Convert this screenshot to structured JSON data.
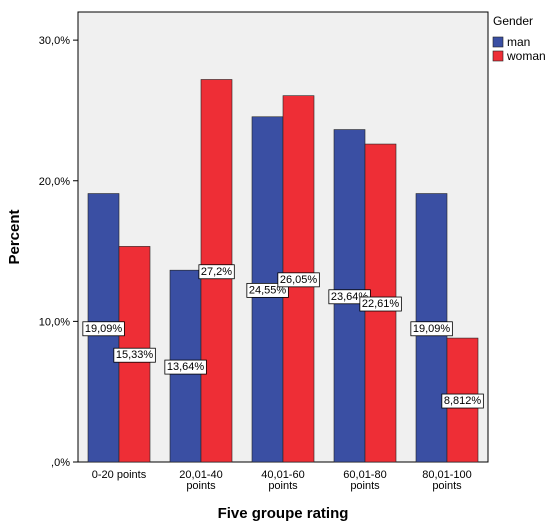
{
  "chart_data": {
    "type": "bar",
    "xlabel": "Five groupe rating",
    "ylabel": "Percent",
    "ylim": [
      0,
      32
    ],
    "yticks": [
      {
        "value": 0,
        "label": ",0%"
      },
      {
        "value": 10,
        "label": "10,0%"
      },
      {
        "value": 20,
        "label": "20,0%"
      },
      {
        "value": 30,
        "label": "30,0%"
      }
    ],
    "categories": [
      [
        "0-20 points"
      ],
      [
        "20,01-40",
        "points"
      ],
      [
        "40,01-60",
        "points"
      ],
      [
        "60,01-80",
        "points"
      ],
      [
        "80,01-100",
        "points"
      ]
    ],
    "series": [
      {
        "name": "man",
        "color": "#3a4fa3",
        "values": [
          19.09,
          13.64,
          24.55,
          23.64,
          19.09
        ],
        "labels": [
          "19,09%",
          "13,64%",
          "24,55%",
          "23,64%",
          "19,09%"
        ]
      },
      {
        "name": "woman",
        "color": "#ee2e36",
        "values": [
          15.33,
          27.2,
          26.05,
          22.61,
          8.812
        ],
        "labels": [
          "15,33%",
          "27,2%",
          "26,05%",
          "22,61%",
          "8,812%"
        ]
      }
    ],
    "legend": {
      "title": "Gender",
      "position": "top-right"
    },
    "grid": false,
    "plot_background": "#f0f0f0"
  }
}
